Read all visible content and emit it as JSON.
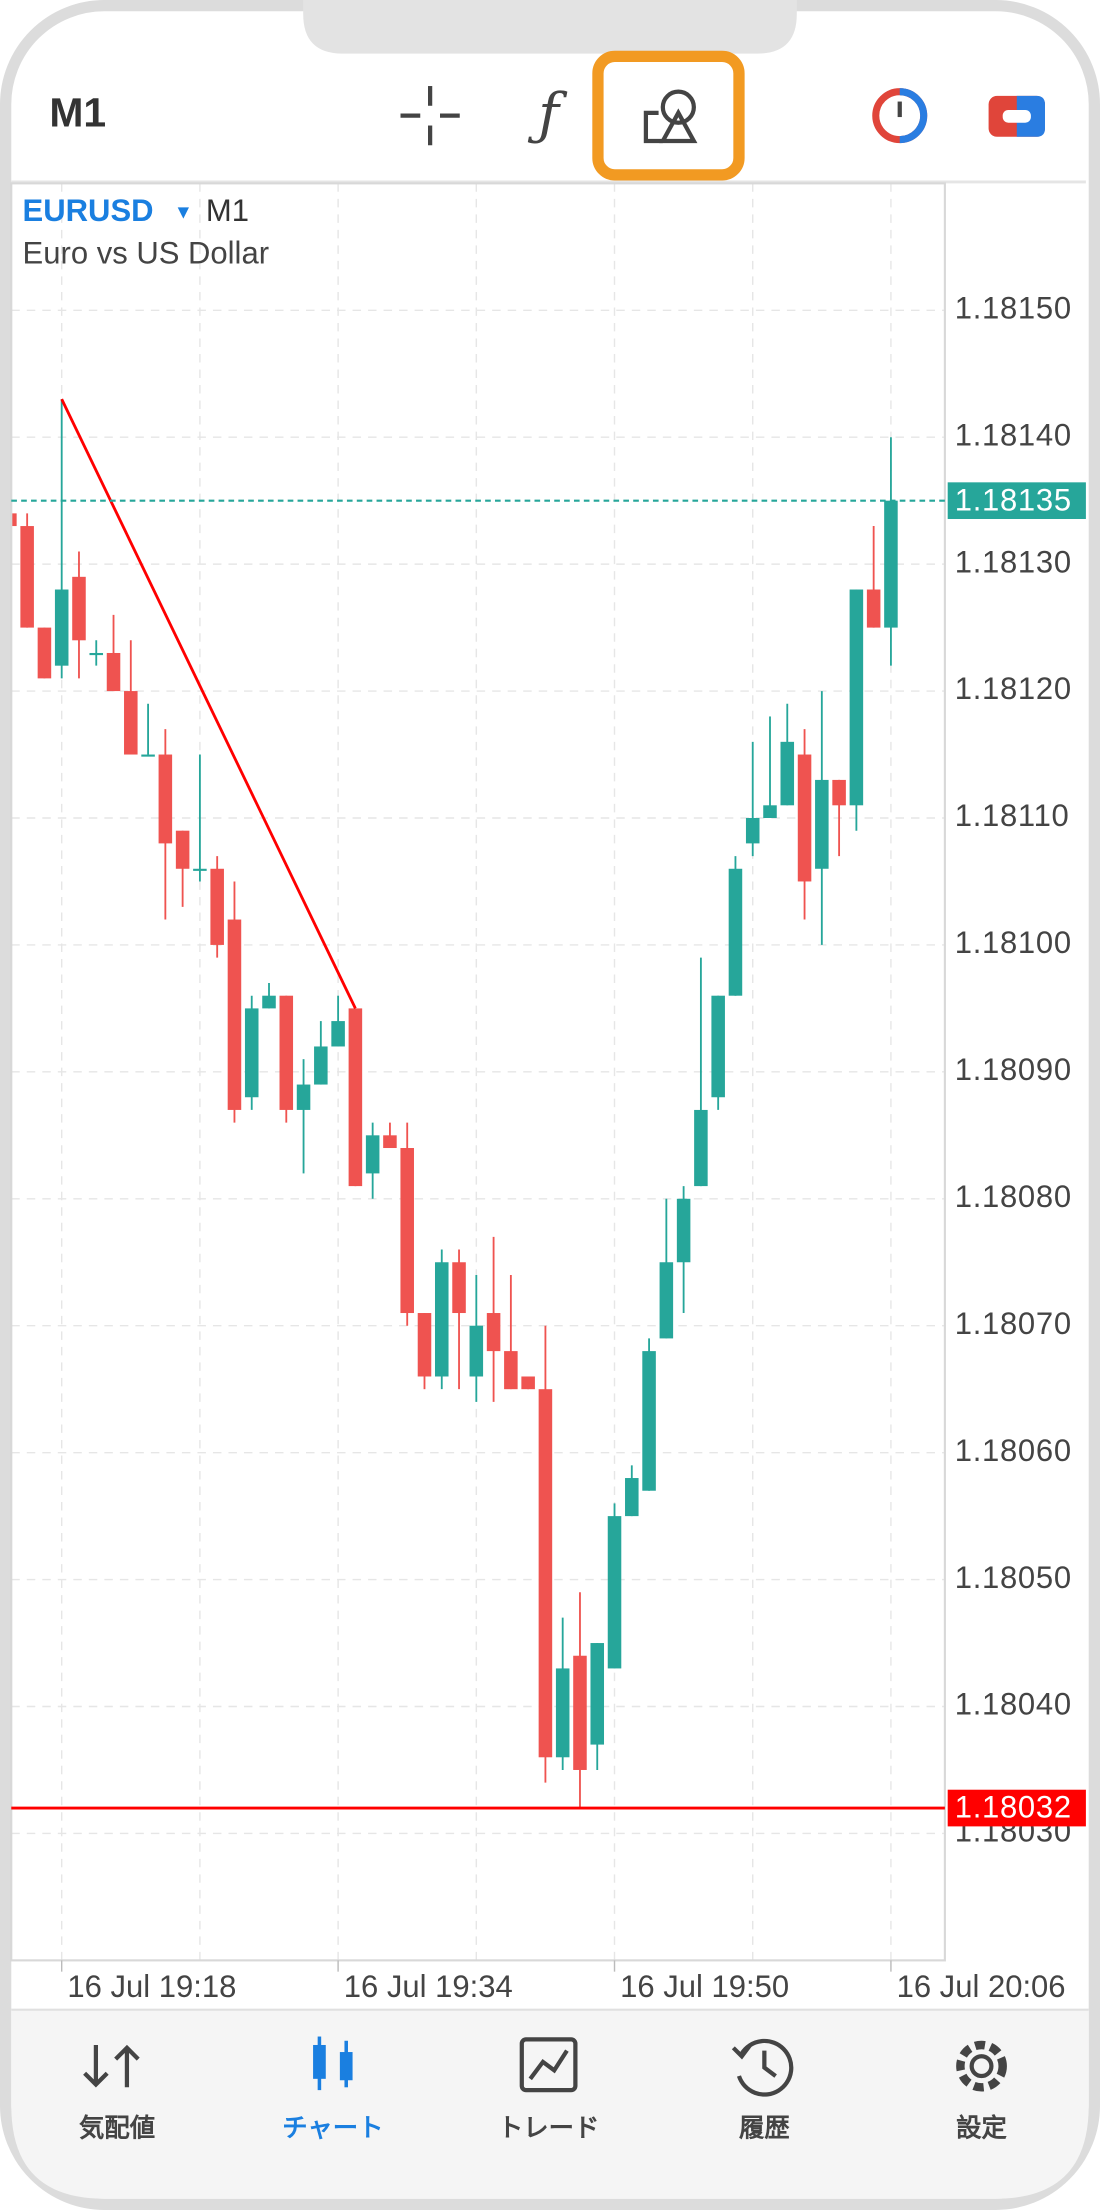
{
  "toolbar": {
    "timeframe": "M1"
  },
  "chart_data": {
    "type": "candlestick",
    "symbol": "EURUSD",
    "timeframe": "M1",
    "description": "Euro vs US Dollar",
    "up_color": "#26a69a",
    "down_color": "#ef5350",
    "categories": [
      null,
      null,
      null,
      "16 Jul 19:18",
      null,
      null,
      null,
      null,
      null,
      null,
      null,
      null,
      null,
      null,
      null,
      null,
      null,
      null,
      null,
      "16 Jul 19:34",
      null,
      null,
      null,
      null,
      null,
      null,
      null,
      null,
      null,
      null,
      null,
      null,
      null,
      null,
      null,
      "16 Jul 19:50",
      null,
      null,
      null,
      null,
      null,
      null,
      null,
      null,
      null,
      null,
      null,
      null,
      null,
      null,
      null,
      "16 Jul 20:06"
    ],
    "open": [
      1.18134,
      1.18133,
      1.18125,
      1.18122,
      1.18129,
      1.18123,
      1.18123,
      1.1812,
      1.18115,
      1.18115,
      1.18109,
      1.18106,
      1.18106,
      1.18102,
      1.18088,
      1.18095,
      1.18096,
      1.18087,
      1.18089,
      1.18092,
      1.18095,
      1.18082,
      1.18085,
      1.18084,
      1.18071,
      1.18066,
      1.18075,
      1.18066,
      1.18071,
      1.18068,
      1.18066,
      1.18065,
      1.18036,
      1.18044,
      1.18037,
      1.18043,
      1.18055,
      1.18057,
      1.18069,
      1.18075,
      1.18081,
      1.18088,
      1.18096,
      1.18108,
      1.1811,
      1.18111,
      1.18115,
      1.18106,
      1.18113,
      1.18111,
      1.18128,
      1.18125
    ],
    "high": [
      1.18135,
      1.18134,
      1.18125,
      1.18143,
      1.18131,
      1.18124,
      1.18126,
      1.18124,
      1.18119,
      1.18117,
      1.18109,
      1.18115,
      1.18107,
      1.18105,
      1.18096,
      1.18097,
      1.18096,
      1.18091,
      1.18094,
      1.18096,
      1.18095,
      1.18086,
      1.18086,
      1.18086,
      1.18071,
      1.18076,
      1.18076,
      1.18074,
      1.18077,
      1.18074,
      1.18066,
      1.1807,
      1.18047,
      1.18049,
      1.18045,
      1.18056,
      1.18059,
      1.18069,
      1.1808,
      1.18081,
      1.18099,
      1.18096,
      1.18107,
      1.18116,
      1.18118,
      1.18119,
      1.18117,
      1.1812,
      1.18113,
      1.18128,
      1.18133,
      1.1814
    ],
    "low": [
      1.18132,
      1.18125,
      1.18121,
      1.18121,
      1.18121,
      1.18122,
      1.1812,
      1.18115,
      1.18115,
      1.18102,
      1.18103,
      1.18105,
      1.18099,
      1.18086,
      1.18087,
      1.18095,
      1.18086,
      1.18082,
      1.18089,
      1.18092,
      1.18081,
      1.1808,
      1.18084,
      1.1807,
      1.18065,
      1.18065,
      1.18065,
      1.18064,
      1.18064,
      1.18065,
      1.18065,
      1.18034,
      1.18035,
      1.18032,
      1.18035,
      1.18043,
      1.18055,
      1.18057,
      1.18069,
      1.18071,
      1.18081,
      1.18087,
      1.18096,
      1.18107,
      1.1811,
      1.18111,
      1.18102,
      1.181,
      1.18107,
      1.18109,
      1.18125,
      1.18122
    ],
    "close": [
      1.18133,
      1.18125,
      1.18121,
      1.18128,
      1.18124,
      1.18123,
      1.1812,
      1.18115,
      1.18115,
      1.18108,
      1.18106,
      1.18106,
      1.181,
      1.18087,
      1.18095,
      1.18096,
      1.18087,
      1.18089,
      1.18092,
      1.18094,
      1.18081,
      1.18085,
      1.18084,
      1.18071,
      1.18066,
      1.18075,
      1.18071,
      1.1807,
      1.18068,
      1.18065,
      1.18065,
      1.18036,
      1.18043,
      1.18035,
      1.18045,
      1.18055,
      1.18058,
      1.18068,
      1.18075,
      1.1808,
      1.18087,
      1.18096,
      1.18106,
      1.1811,
      1.18111,
      1.18116,
      1.18105,
      1.18113,
      1.18111,
      1.18128,
      1.18125,
      1.18135
    ],
    "ylim": [
      1.1802,
      1.1816
    ],
    "yticks": [
      {
        "value": 1.1803,
        "label": "1.18030"
      },
      {
        "value": 1.1804,
        "label": "1.18040"
      },
      {
        "value": 1.1805,
        "label": "1.18050"
      },
      {
        "value": 1.1806,
        "label": "1.18060"
      },
      {
        "value": 1.1807,
        "label": "1.18070"
      },
      {
        "value": 1.1808,
        "label": "1.18080"
      },
      {
        "value": 1.1809,
        "label": "1.18090"
      },
      {
        "value": 1.181,
        "label": "1.18100"
      },
      {
        "value": 1.1811,
        "label": "1.18110"
      },
      {
        "value": 1.1812,
        "label": "1.18120"
      },
      {
        "value": 1.1813,
        "label": "1.18130"
      },
      {
        "value": 1.1814,
        "label": "1.18140"
      },
      {
        "value": 1.1815,
        "label": "1.18150"
      }
    ],
    "grid": true,
    "trendline": {
      "x": [
        3,
        20
      ],
      "y": [
        1.18143,
        1.18095
      ],
      "color": "#ff0000"
    },
    "current_price": {
      "value": 1.18135,
      "color": "#26a69a"
    },
    "alert_line": {
      "value": 1.18032,
      "color": "#ff0000"
    }
  },
  "tabs": {
    "items": [
      "気配値",
      "チャート",
      "トレード",
      "履歴",
      "設定"
    ],
    "active": 1
  }
}
